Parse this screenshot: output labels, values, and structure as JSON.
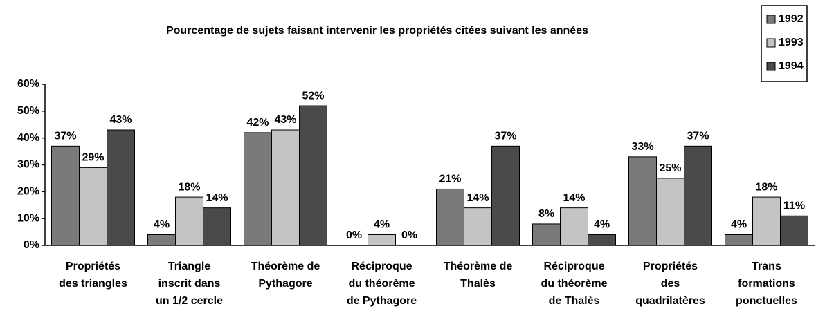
{
  "chart_data": {
    "type": "bar",
    "title": "Pourcentage de sujets faisant intervenir les propriétés citées suivant les années",
    "categories": [
      [
        "Propriétés",
        "des triangles"
      ],
      [
        "Triangle",
        "inscrit dans",
        "un 1/2 cercle"
      ],
      [
        "Théorème de",
        "Pythagore"
      ],
      [
        "Réciproque",
        "du théorème",
        "de Pythagore"
      ],
      [
        "Théorème de",
        "Thalès"
      ],
      [
        "Réciproque",
        "du théorème",
        "de Thalès"
      ],
      [
        "Propriétés",
        "des",
        "quadrilatères"
      ],
      [
        "Trans",
        "formations",
        "ponctuelles"
      ]
    ],
    "series": [
      {
        "name": "1992",
        "color": "#7a7a7a",
        "values": [
          37,
          4,
          42,
          0,
          21,
          8,
          33,
          4
        ],
        "value_labels": [
          "37%",
          "4%",
          "42%",
          "0%",
          "21%",
          "8%",
          "33%",
          "4%"
        ]
      },
      {
        "name": "1993",
        "color": "#c4c4c4",
        "values": [
          29,
          18,
          43,
          4,
          14,
          14,
          25,
          18
        ],
        "value_labels": [
          "29%",
          "18%",
          "43%",
          "4%",
          "14%",
          "14%",
          "25%",
          "18%"
        ]
      },
      {
        "name": "1994",
        "color": "#4a4a4a",
        "values": [
          43,
          14,
          52,
          0,
          37,
          4,
          37,
          11
        ],
        "value_labels": [
          "43%",
          "14%",
          "52%",
          "0%",
          "37%",
          "4%",
          "37%",
          "11%"
        ]
      }
    ],
    "ylim": [
      0,
      60
    ],
    "yticks": [
      {
        "value": 0,
        "label": "0%"
      },
      {
        "value": 10,
        "label": "10%"
      },
      {
        "value": 20,
        "label": "20%"
      },
      {
        "value": 30,
        "label": "30%"
      },
      {
        "value": 40,
        "label": "40%"
      },
      {
        "value": 50,
        "label": "50%"
      },
      {
        "value": 60,
        "label": "60%"
      }
    ],
    "legend": "top-right"
  }
}
